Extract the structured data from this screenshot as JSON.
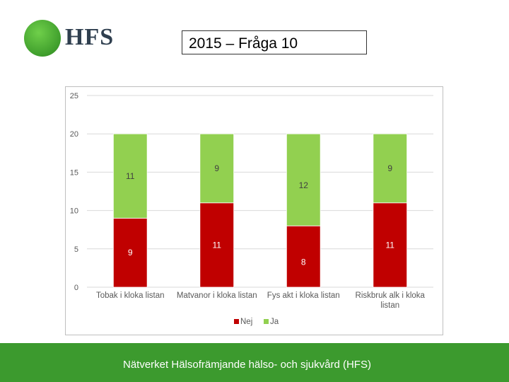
{
  "logo": {
    "text": "HFS",
    "color": "#3f9e2c"
  },
  "title": "2015 – Fråga 10",
  "footer": {
    "text": "Nätverket Hälsofrämjande hälso- och sjukvård (HFS)",
    "color": "#3c9a2e"
  },
  "chart_data": {
    "type": "bar",
    "stacked": true,
    "categories": [
      "Tobak i kloka listan",
      "Matvanor i kloka listan",
      "Fys akt i kloka listan",
      "Riskbruk alk i kloka listan"
    ],
    "series": [
      {
        "name": "Nej",
        "color": "#c00000",
        "values": [
          9,
          11,
          8,
          11
        ]
      },
      {
        "name": "Ja",
        "color": "#92d050",
        "values": [
          11,
          9,
          12,
          9
        ]
      }
    ],
    "ylim": [
      0,
      25
    ],
    "yticks": [
      0,
      5,
      10,
      15,
      20,
      25
    ],
    "grid": true,
    "legend": "bottom",
    "data_labels": true
  }
}
